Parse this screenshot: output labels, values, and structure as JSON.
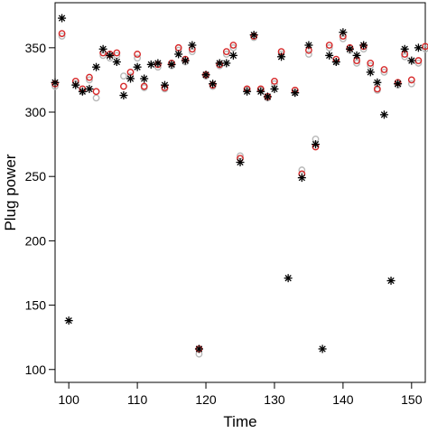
{
  "chart_data": {
    "type": "scatter",
    "xlabel": "Time",
    "ylabel": "Plug power",
    "xlim": [
      98,
      152
    ],
    "ylim": [
      90,
      385
    ],
    "x_ticks": [
      100,
      110,
      120,
      130,
      140,
      150
    ],
    "y_ticks": [
      100,
      150,
      200,
      250,
      300,
      350
    ],
    "grid": false,
    "legend": "none",
    "series": [
      {
        "marker": "asterisk",
        "color": "#000000",
        "points": [
          [
            98,
            323
          ],
          [
            99,
            373
          ],
          [
            100,
            138
          ],
          [
            101,
            321
          ],
          [
            102,
            316
          ],
          [
            103,
            318
          ],
          [
            104,
            335
          ],
          [
            105,
            349
          ],
          [
            106,
            344
          ],
          [
            107,
            339
          ],
          [
            108,
            313
          ],
          [
            109,
            326
          ],
          [
            110,
            335
          ],
          [
            111,
            326
          ],
          [
            112,
            337
          ],
          [
            113,
            338
          ],
          [
            114,
            321
          ],
          [
            115,
            337
          ],
          [
            116,
            345
          ],
          [
            117,
            340
          ],
          [
            118,
            352
          ],
          [
            119,
            116
          ],
          [
            120,
            329
          ],
          [
            121,
            322
          ],
          [
            122,
            338
          ],
          [
            123,
            338
          ],
          [
            124,
            344
          ],
          [
            125,
            261
          ],
          [
            126,
            316
          ],
          [
            127,
            360
          ],
          [
            128,
            316
          ],
          [
            129,
            312
          ],
          [
            130,
            318
          ],
          [
            131,
            343
          ],
          [
            132,
            171
          ],
          [
            133,
            315
          ],
          [
            134,
            249
          ],
          [
            135,
            352
          ],
          [
            136,
            275
          ],
          [
            137,
            116
          ],
          [
            138,
            344
          ],
          [
            139,
            339
          ],
          [
            140,
            362
          ],
          [
            141,
            349
          ],
          [
            142,
            344
          ],
          [
            143,
            352
          ],
          [
            144,
            331
          ],
          [
            145,
            323
          ],
          [
            146,
            298
          ],
          [
            147,
            169
          ],
          [
            148,
            322
          ],
          [
            149,
            349
          ],
          [
            150,
            340
          ],
          [
            151,
            350
          ]
        ]
      },
      {
        "marker": "open-circle",
        "color": "#d62728",
        "points": [
          [
            98,
            322
          ],
          [
            99,
            361
          ],
          [
            101,
            324
          ],
          [
            102,
            318
          ],
          [
            103,
            327
          ],
          [
            104,
            316
          ],
          [
            105,
            346
          ],
          [
            106,
            345
          ],
          [
            107,
            346
          ],
          [
            108,
            320
          ],
          [
            109,
            331
          ],
          [
            110,
            345
          ],
          [
            111,
            320
          ],
          [
            113,
            337
          ],
          [
            114,
            319
          ],
          [
            115,
            338
          ],
          [
            116,
            350
          ],
          [
            117,
            341
          ],
          [
            118,
            349
          ],
          [
            119,
            116
          ],
          [
            120,
            329
          ],
          [
            121,
            321
          ],
          [
            122,
            337
          ],
          [
            123,
            347
          ],
          [
            124,
            352
          ],
          [
            125,
            264
          ],
          [
            126,
            318
          ],
          [
            127,
            359
          ],
          [
            128,
            318
          ],
          [
            129,
            312
          ],
          [
            130,
            324
          ],
          [
            131,
            347
          ],
          [
            133,
            317
          ],
          [
            134,
            252
          ],
          [
            135,
            348
          ],
          [
            136,
            273
          ],
          [
            138,
            352
          ],
          [
            139,
            341
          ],
          [
            140,
            359
          ],
          [
            141,
            350
          ],
          [
            142,
            340
          ],
          [
            143,
            351
          ],
          [
            144,
            338
          ],
          [
            145,
            318
          ],
          [
            146,
            333
          ],
          [
            148,
            323
          ],
          [
            149,
            345
          ],
          [
            150,
            325
          ],
          [
            151,
            340
          ],
          [
            152,
            351
          ]
        ]
      },
      {
        "marker": "open-circle",
        "color": "#b8b8b8",
        "points": [
          [
            98,
            320
          ],
          [
            99,
            359
          ],
          [
            101,
            322
          ],
          [
            102,
            316
          ],
          [
            103,
            325
          ],
          [
            104,
            311
          ],
          [
            105,
            344
          ],
          [
            106,
            342
          ],
          [
            107,
            344
          ],
          [
            108,
            328
          ],
          [
            109,
            328
          ],
          [
            110,
            342
          ],
          [
            111,
            319
          ],
          [
            113,
            335
          ],
          [
            114,
            318
          ],
          [
            115,
            336
          ],
          [
            116,
            348
          ],
          [
            117,
            339
          ],
          [
            118,
            347
          ],
          [
            119,
            112
          ],
          [
            120,
            328
          ],
          [
            121,
            320
          ],
          [
            122,
            336
          ],
          [
            123,
            345
          ],
          [
            124,
            350
          ],
          [
            125,
            266
          ],
          [
            126,
            317
          ],
          [
            127,
            358
          ],
          [
            128,
            317
          ],
          [
            129,
            311
          ],
          [
            130,
            322
          ],
          [
            131,
            345
          ],
          [
            133,
            315
          ],
          [
            134,
            255
          ],
          [
            135,
            345
          ],
          [
            136,
            279
          ],
          [
            138,
            350
          ],
          [
            139,
            339
          ],
          [
            140,
            357
          ],
          [
            141,
            348
          ],
          [
            142,
            338
          ],
          [
            143,
            349
          ],
          [
            144,
            336
          ],
          [
            145,
            317
          ],
          [
            146,
            331
          ],
          [
            148,
            321
          ],
          [
            149,
            343
          ],
          [
            150,
            322
          ],
          [
            151,
            338
          ],
          [
            152,
            349
          ]
        ]
      }
    ]
  }
}
